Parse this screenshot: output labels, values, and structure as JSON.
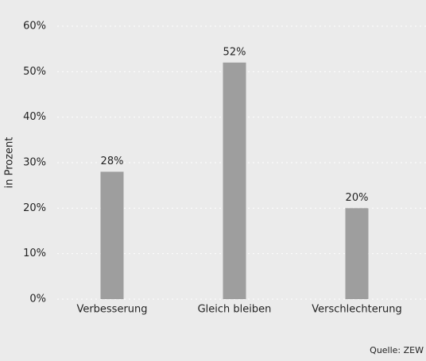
{
  "chart_data": {
    "type": "bar",
    "y_label": "in Prozent",
    "source": "Quelle: ZEW",
    "categories": [
      "Verbesserung",
      "Gleich bleiben",
      "Verschlechterung"
    ],
    "values": [
      28,
      52,
      20
    ],
    "value_labels": [
      "28%",
      "52%",
      "20%"
    ],
    "color": "#9e9e9e",
    "ylim": [
      0,
      60
    ],
    "yticks": [
      {
        "value": 0,
        "label": "0%"
      },
      {
        "value": 10,
        "label": "10%"
      },
      {
        "value": 20,
        "label": "20%"
      },
      {
        "value": 30,
        "label": "30%"
      },
      {
        "value": 40,
        "label": "40%"
      },
      {
        "value": 50,
        "label": "50%"
      },
      {
        "value": 60,
        "label": "60%"
      }
    ],
    "grid": true
  }
}
